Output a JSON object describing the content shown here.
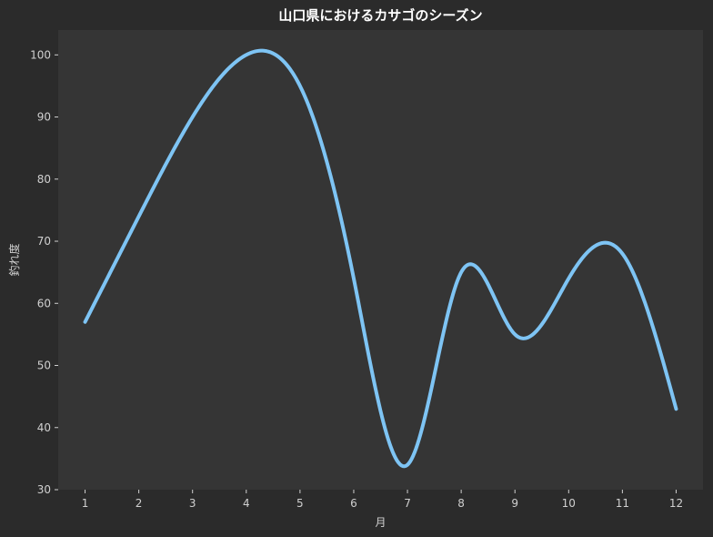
{
  "chart_data": {
    "type": "line",
    "title": "山口県におけるカサゴのシーズン",
    "xlabel": "月",
    "ylabel": "釣れ度",
    "x": [
      1,
      2,
      3,
      4,
      5,
      6,
      7,
      8,
      9,
      10,
      11,
      12
    ],
    "xlim": [
      0.5,
      12.5
    ],
    "ylim": [
      30,
      104
    ],
    "yticks": [
      30,
      40,
      50,
      60,
      70,
      80,
      90,
      100
    ],
    "grid": false,
    "legend": "none",
    "series": [
      {
        "values": [
          57,
          74,
          90,
          100,
          95,
          64,
          34,
          65,
          55,
          64,
          68,
          43
        ],
        "color": "#7ec4f4",
        "smooth": true
      }
    ]
  },
  "colors": {
    "background": "#2b2b2b",
    "plot_background": "#353535",
    "text": "#d0d0d0",
    "title": "#ffffff",
    "line": "#7ec4f4"
  }
}
